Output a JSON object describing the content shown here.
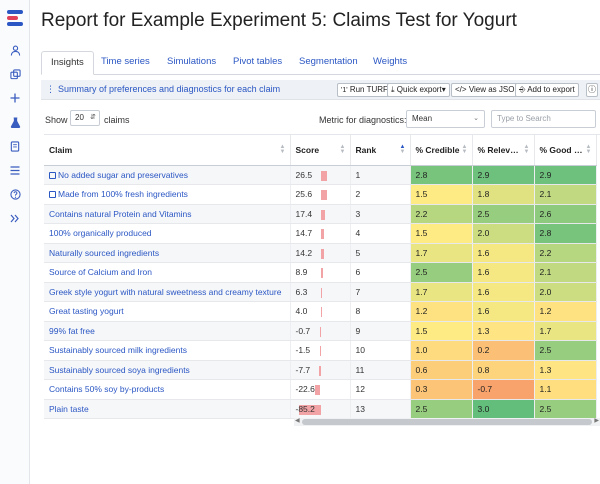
{
  "title": "Report for Example Experiment 5: Claims Test for Yogurt",
  "rail_icons": [
    "user-icon",
    "layers-icon",
    "plus-icon",
    "flask-icon",
    "document-icon",
    "list-icon",
    "help-icon",
    "expand-icon"
  ],
  "tabs": [
    "Insights",
    "Time series",
    "Simulations",
    "Pivot tables",
    "Segmentation",
    "Weights"
  ],
  "summary": {
    "title": "Summary of preferences and diagnostics for each claim",
    "buttons": [
      "Run TURF",
      "Quick export",
      "View as JSON",
      "Add to export"
    ]
  },
  "controls": {
    "show_label": "Show",
    "show_value": "20",
    "claims_label": "claims",
    "metric_label": "Metric for diagnostics:",
    "metric_value": "Mean",
    "search_placeholder": "Type to Search"
  },
  "table": {
    "headers": [
      "Claim",
      "Score",
      "Rank",
      "% Credible",
      "% Relev…",
      "% Good …"
    ],
    "rows": [
      {
        "claim": "No added sugar and preservatives",
        "locked": true,
        "score": 26.5,
        "rank": 1,
        "credible": "2.8",
        "relevant": "2.9",
        "good": "2.9"
      },
      {
        "claim": "Made from 100% fresh ingredients",
        "locked": true,
        "score": 25.6,
        "rank": 2,
        "credible": "1.5",
        "relevant": "1.8",
        "good": "2.1"
      },
      {
        "claim": "Contains natural Protein and Vitamins",
        "locked": false,
        "score": 17.4,
        "rank": 3,
        "credible": "2.2",
        "relevant": "2.5",
        "good": "2.6"
      },
      {
        "claim": "100% organically produced",
        "locked": false,
        "score": 14.7,
        "rank": 4,
        "credible": "1.5",
        "relevant": "2.0",
        "good": "2.8"
      },
      {
        "claim": "Naturally sourced ingredients",
        "locked": false,
        "score": 14.2,
        "rank": 5,
        "credible": "1.7",
        "relevant": "1.6",
        "good": "2.2"
      },
      {
        "claim": "Source of Calcium and Iron",
        "locked": false,
        "score": 8.9,
        "rank": 6,
        "credible": "2.5",
        "relevant": "1.6",
        "good": "2.1"
      },
      {
        "claim": "Greek style yogurt with natural sweetness and creamy texture",
        "locked": false,
        "score": 6.3,
        "rank": 7,
        "credible": "1.7",
        "relevant": "1.6",
        "good": "2.0"
      },
      {
        "claim": "Great tasting yogurt",
        "locked": false,
        "score": 4.0,
        "rank": 8,
        "credible": "1.2",
        "relevant": "1.6",
        "good": "1.2"
      },
      {
        "claim": "99% fat free",
        "locked": false,
        "score": -0.7,
        "rank": 9,
        "credible": "1.5",
        "relevant": "1.3",
        "good": "1.7"
      },
      {
        "claim": "Sustainably sourced milk ingredients",
        "locked": false,
        "score": -1.5,
        "rank": 10,
        "credible": "1.0",
        "relevant": "0.2",
        "good": "2.5"
      },
      {
        "claim": "Sustainably sourced soya ingredients",
        "locked": false,
        "score": -7.7,
        "rank": 11,
        "credible": "0.6",
        "relevant": "0.8",
        "good": "1.3"
      },
      {
        "claim": "Contains 50% soy by-products",
        "locked": false,
        "score": -22.6,
        "rank": 12,
        "credible": "0.3",
        "relevant": "-0.7",
        "good": "1.1"
      },
      {
        "claim": "Plain taste",
        "locked": false,
        "score": -85.2,
        "rank": 13,
        "credible": "2.5",
        "relevant": "3.0",
        "good": "2.5"
      }
    ]
  },
  "colors": {
    "accent": "#2b57c4",
    "score_bar": "#f1a3a6",
    "heat_high": "#63be7b",
    "heat_mid": "#ffeb84",
    "heat_low": "#f8a36b"
  }
}
